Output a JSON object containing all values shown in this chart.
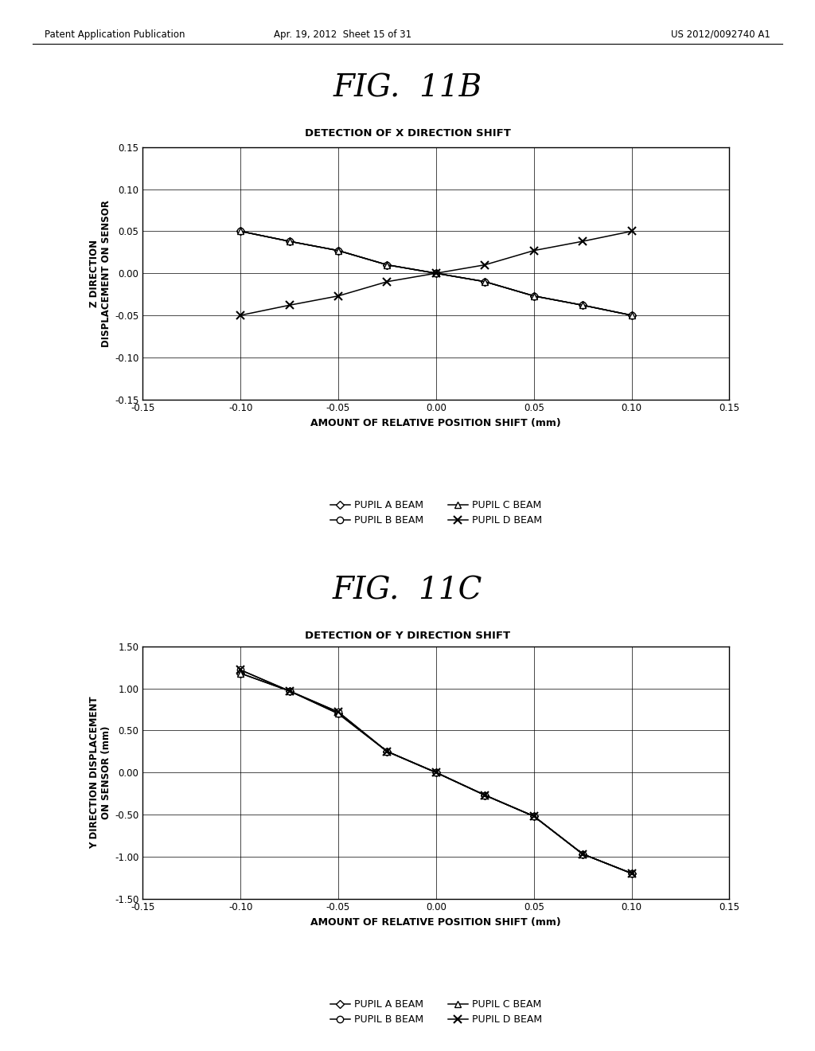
{
  "fig11b_title": "FIG.  11B",
  "fig11c_title": "FIG.  11C",
  "chart11b_title": "DETECTION OF X DIRECTION SHIFT",
  "chart11c_title": "DETECTION OF Y DIRECTION SHIFT",
  "xlabel": "AMOUNT OF RELATIVE POSITION SHIFT (mm)",
  "ylabel11b": "Z DIRECTION\nDISPLACEMENT ON SENSOR",
  "ylabel11c": "Y DIRECTION DISPLACEMENT\nON SENSOR (mm)",
  "x_values": [
    -0.1,
    -0.075,
    -0.05,
    -0.025,
    0.0,
    0.025,
    0.05,
    0.075,
    0.1
  ],
  "xlim": [
    -0.15,
    0.15
  ],
  "xticks": [
    -0.15,
    -0.1,
    -0.05,
    0.0,
    0.05,
    0.1,
    0.15
  ],
  "fig11b_ylim": [
    -0.15,
    0.15
  ],
  "fig11b_yticks": [
    -0.15,
    -0.1,
    -0.05,
    0.0,
    0.05,
    0.1,
    0.15
  ],
  "fig11c_ylim": [
    -1.5,
    1.5
  ],
  "fig11c_yticks": [
    -1.5,
    -1.0,
    -0.5,
    0.0,
    0.5,
    1.0,
    1.5
  ],
  "pupil_a_11b": [
    0.05,
    0.038,
    0.027,
    0.01,
    0.0,
    -0.01,
    -0.027,
    -0.038,
    -0.05
  ],
  "pupil_b_11b": [
    0.05,
    0.038,
    0.027,
    0.01,
    0.0,
    -0.01,
    -0.027,
    -0.038,
    -0.05
  ],
  "pupil_c_11b": [
    0.05,
    0.038,
    0.027,
    0.01,
    0.0,
    -0.01,
    -0.027,
    -0.038,
    -0.05
  ],
  "pupil_d_11b": [
    -0.05,
    -0.038,
    -0.027,
    -0.01,
    0.0,
    0.01,
    0.027,
    0.038,
    0.05
  ],
  "pupil_a_11c": [
    1.18,
    0.97,
    0.7,
    0.25,
    0.0,
    -0.27,
    -0.52,
    -0.97,
    -1.2
  ],
  "pupil_b_11c": [
    1.22,
    0.97,
    0.72,
    0.25,
    0.0,
    -0.27,
    -0.52,
    -0.97,
    -1.2
  ],
  "pupil_c_11c": [
    1.18,
    0.97,
    0.7,
    0.25,
    0.0,
    -0.27,
    -0.52,
    -0.97,
    -1.2
  ],
  "pupil_d_11c": [
    1.22,
    0.97,
    0.72,
    0.25,
    0.0,
    -0.27,
    -0.52,
    -0.97,
    -1.2
  ],
  "header_left": "Patent Application Publication",
  "header_center": "Apr. 19, 2012  Sheet 15 of 31",
  "header_right": "US 2012/0092740 A1",
  "bg_color": "#ffffff"
}
